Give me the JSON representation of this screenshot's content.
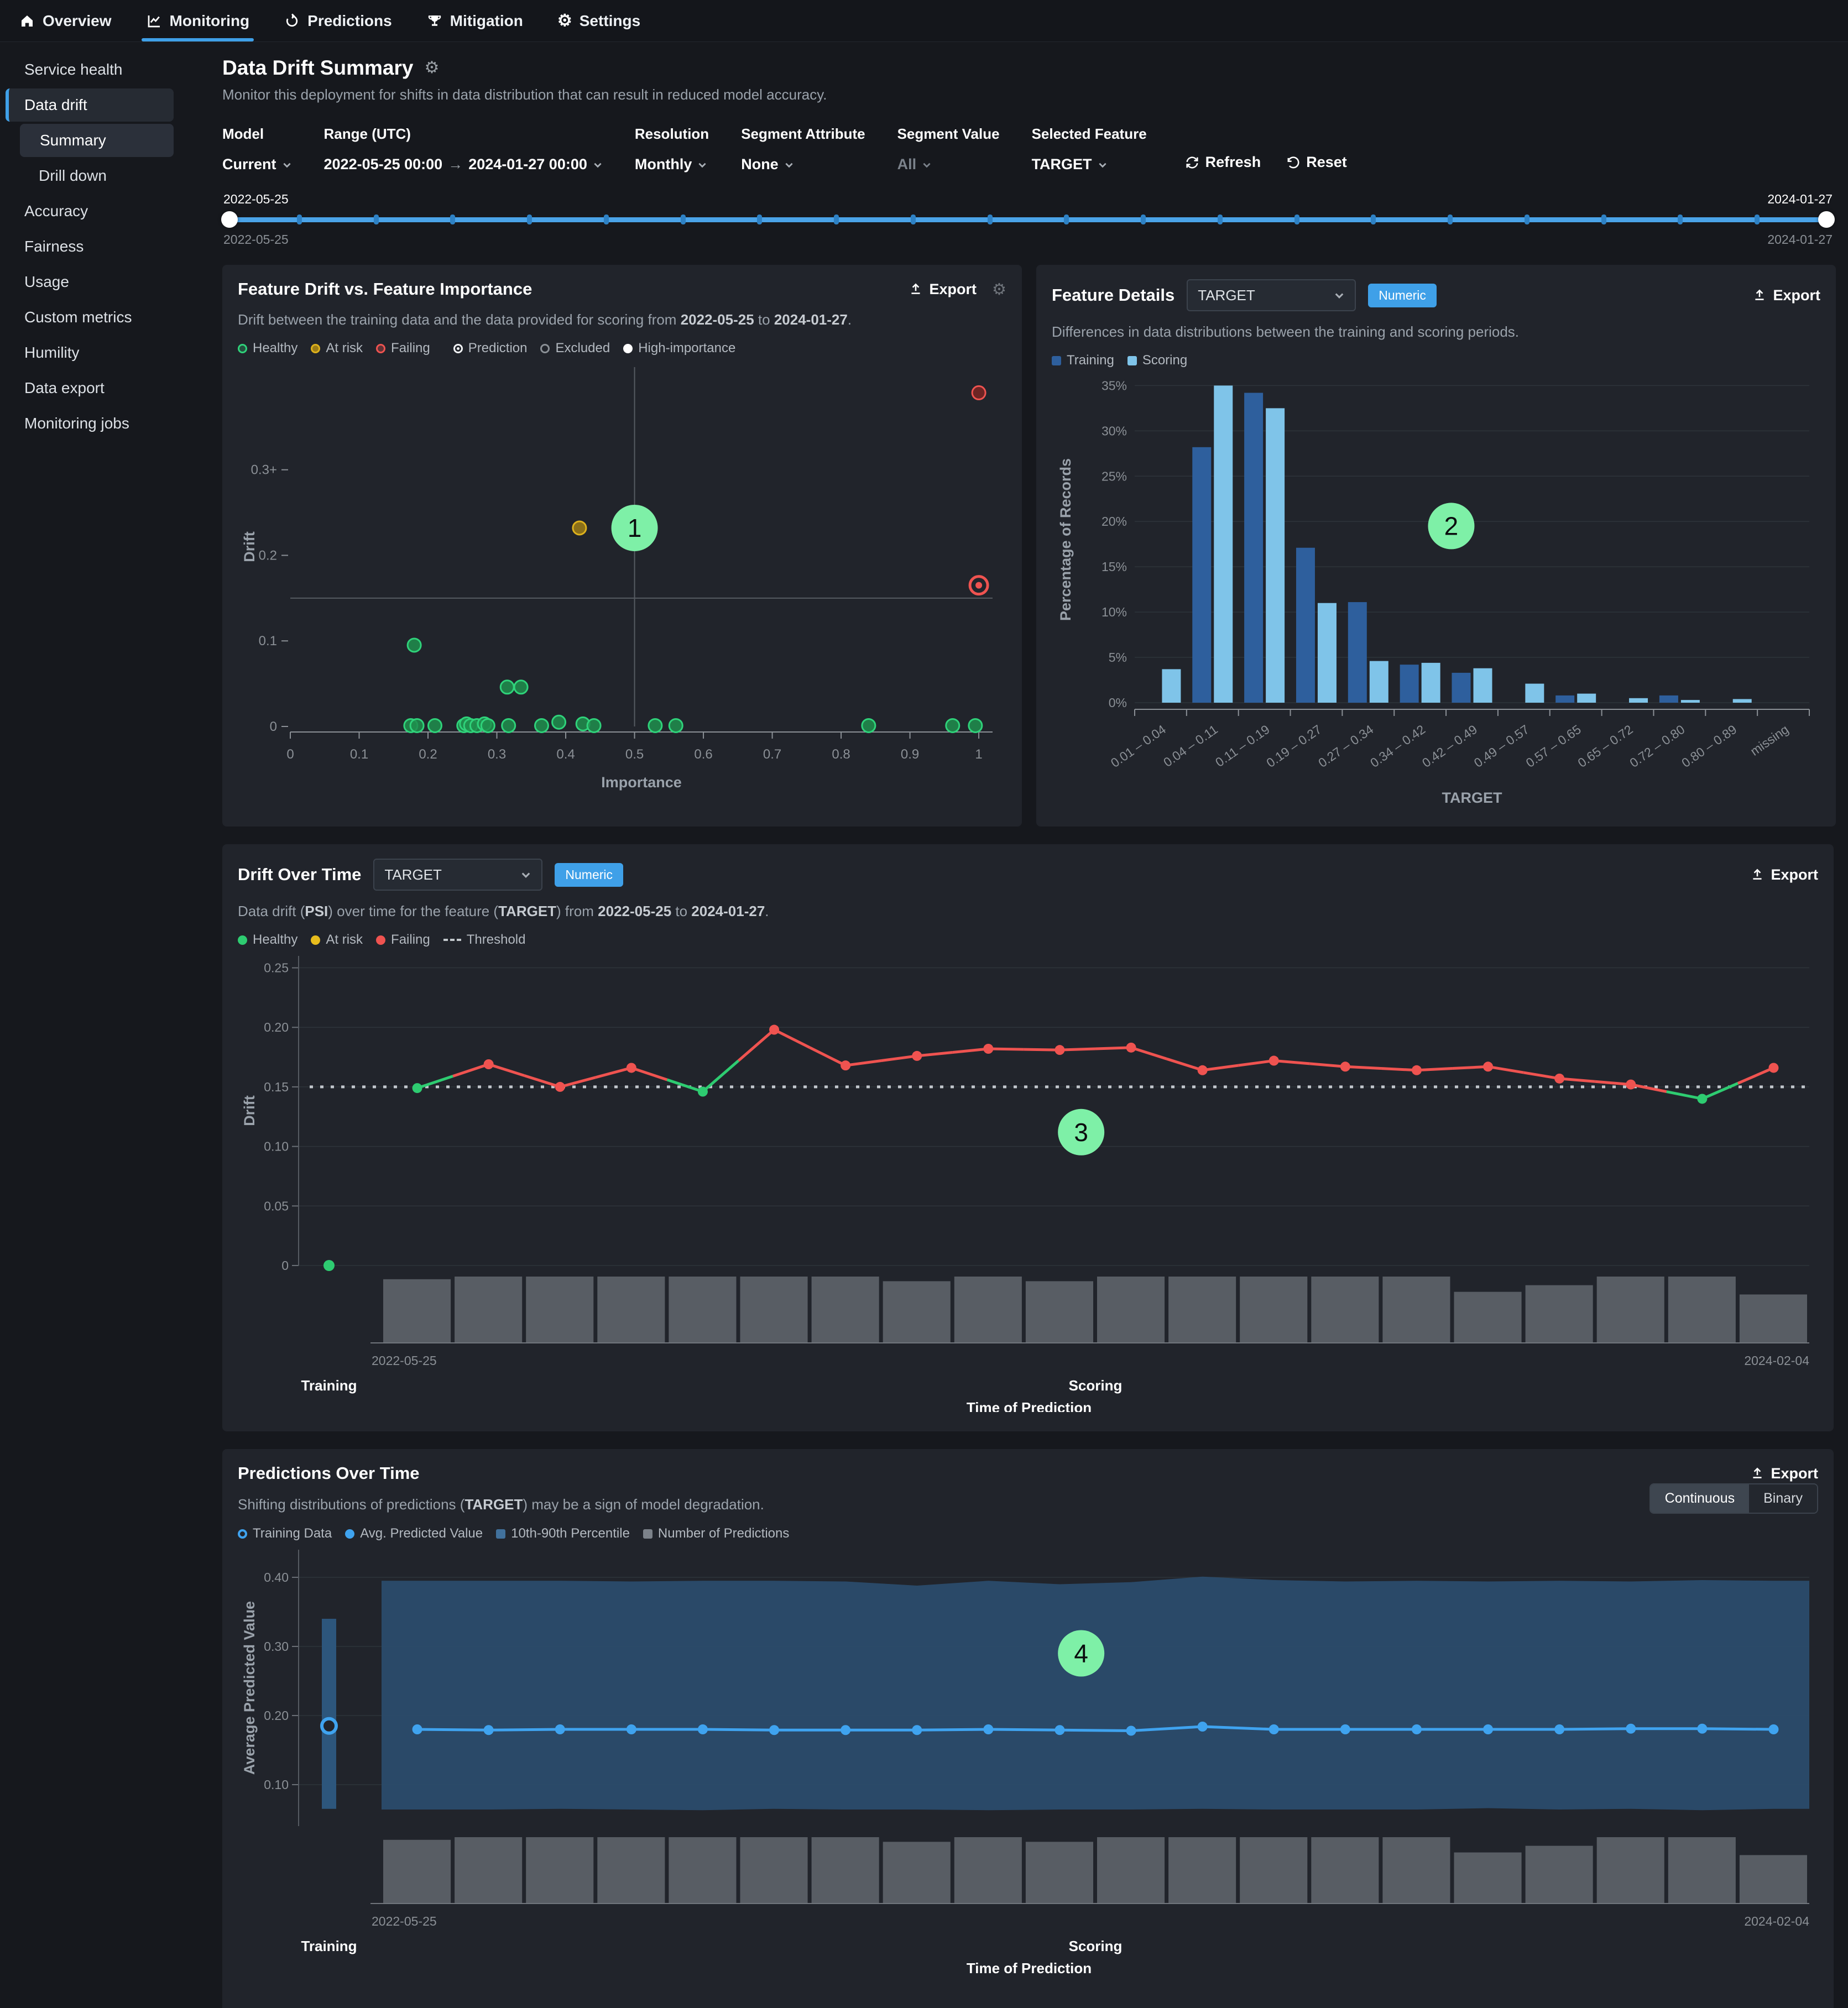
{
  "colors": {
    "accent_blue": "#3fa0e8",
    "healthy_green": "#2ecc71",
    "at_risk_yellow": "#e0b01e",
    "failing_red": "#ef5350",
    "training_blue": "#2e5f9d",
    "scoring_blue": "#7fc4e9",
    "band_blue": "#2b4c6b",
    "training_bar_blue": "#2d567c",
    "avg_line_blue": "#3fa3ef",
    "volume_gray": "#585d64",
    "annotation_green": "#7ef0a7",
    "threshold_gray": "#c2c7cd"
  },
  "nav": {
    "items": [
      {
        "label": "Overview",
        "icon": "home-icon",
        "active": false
      },
      {
        "label": "Monitoring",
        "icon": "monitoring-icon",
        "active": true
      },
      {
        "label": "Predictions",
        "icon": "predictions-icon",
        "active": false
      },
      {
        "label": "Mitigation",
        "icon": "mitigation-icon",
        "active": false
      },
      {
        "label": "Settings",
        "icon": "settings-icon",
        "active": false
      }
    ]
  },
  "sidebar": {
    "items": [
      {
        "label": "Service health"
      },
      {
        "label": "Data drift",
        "parent_active": true
      },
      {
        "label": "Summary",
        "child": true,
        "selected": true
      },
      {
        "label": "Drill down",
        "child": true
      },
      {
        "label": "Accuracy"
      },
      {
        "label": "Fairness"
      },
      {
        "label": "Usage"
      },
      {
        "label": "Custom metrics"
      },
      {
        "label": "Humility"
      },
      {
        "label": "Data export"
      },
      {
        "label": "Monitoring jobs"
      }
    ]
  },
  "header": {
    "title": "Data Drift Summary",
    "subtitle": "Monitor this deployment for shifts in data distribution that can result in reduced model accuracy."
  },
  "filters": {
    "model": {
      "label": "Model",
      "value": "Current"
    },
    "range": {
      "label": "Range (UTC)",
      "start": "2022-05-25  00:00",
      "end": "2024-01-27  00:00"
    },
    "resolution": {
      "label": "Resolution",
      "value": "Monthly"
    },
    "segment_attribute": {
      "label": "Segment Attribute",
      "value": "None"
    },
    "segment_value": {
      "label": "Segment Value",
      "value": "All"
    },
    "selected_feature": {
      "label": "Selected Feature",
      "value": "TARGET"
    },
    "refresh_label": "Refresh",
    "reset_label": "Reset"
  },
  "timeline": {
    "start_label": "2022-05-25",
    "end_label": "2024-01-27",
    "start_sub": "2022-05-25",
    "end_sub": "2024-01-27",
    "tick_count": 20
  },
  "panels": {
    "feature_drift": {
      "title": "Feature Drift vs. Feature Importance",
      "export_label": "Export",
      "description_runs": [
        {
          "t": "Drift between the training data and the data provided for scoring from "
        },
        {
          "t": "2022-05-25",
          "b": true
        },
        {
          "t": " to "
        },
        {
          "t": "2024-01-27",
          "b": true
        },
        {
          "t": "."
        }
      ],
      "legend": [
        {
          "label": "Healthy",
          "marker": "healthy"
        },
        {
          "label": "At risk",
          "marker": "atrisk"
        },
        {
          "label": "Failing",
          "marker": "failing"
        },
        {
          "label": "Prediction",
          "marker": "pred",
          "gap": true
        },
        {
          "label": "Excluded",
          "marker": "excluded"
        },
        {
          "label": "High-importance",
          "marker": "highimp"
        }
      ]
    },
    "feature_details": {
      "title": "Feature Details",
      "feature_select_value": "TARGET",
      "type_badge": "Numeric",
      "export_label": "Export",
      "description_runs": [
        {
          "t": "Differences in data distributions between the training and scoring periods."
        }
      ],
      "legend": [
        {
          "label": "Training",
          "marker": "sq-train"
        },
        {
          "label": "Scoring",
          "marker": "sq-score"
        }
      ]
    },
    "drift_over_time": {
      "title": "Drift Over Time",
      "feature_select_value": "TARGET",
      "type_badge": "Numeric",
      "export_label": "Export",
      "description_runs": [
        {
          "t": "Data drift ("
        },
        {
          "t": "PSI",
          "b": true
        },
        {
          "t": ") over time for the feature ("
        },
        {
          "t": "TARGET",
          "b": true
        },
        {
          "t": ") from "
        },
        {
          "t": "2022-05-25",
          "b": true
        },
        {
          "t": " to "
        },
        {
          "t": "2024-01-27",
          "b": true
        },
        {
          "t": "."
        }
      ],
      "legend": [
        {
          "label": "Healthy",
          "marker": "soliddot-h"
        },
        {
          "label": "At risk",
          "marker": "soliddot-y"
        },
        {
          "label": "Failing",
          "marker": "soliddot-r"
        },
        {
          "label": "Threshold",
          "marker": "dash"
        }
      ]
    },
    "predictions_over_time": {
      "title": "Predictions Over Time",
      "export_label": "Export",
      "description_runs": [
        {
          "t": "Shifting distributions of predictions ("
        },
        {
          "t": "TARGET",
          "b": true
        },
        {
          "t": ") may be a sign of model degradation."
        }
      ],
      "toggle": {
        "options": [
          "Continuous",
          "Binary"
        ],
        "active": "Continuous"
      },
      "legend": [
        {
          "label": "Training Data",
          "marker": "ring-blue"
        },
        {
          "label": "Avg. Predicted Value",
          "marker": "dot-blue"
        },
        {
          "label": "10th-90th Percentile",
          "marker": "sq-band"
        },
        {
          "label": "Number of Predictions",
          "marker": "sq-vol"
        }
      ]
    }
  },
  "chart_data": [
    {
      "id": "feature_drift_scatter",
      "type": "scatter",
      "xlabel": "Importance",
      "ylabel": "Drift",
      "xlim": [
        0,
        1.02
      ],
      "ylim": [
        0,
        0.42
      ],
      "x_ticks": [
        {
          "v": 0,
          "label": "0"
        },
        {
          "v": 0.1,
          "label": "0.1"
        },
        {
          "v": 0.2,
          "label": "0.2"
        },
        {
          "v": 0.3,
          "label": "0.3"
        },
        {
          "v": 0.4,
          "label": "0.4"
        },
        {
          "v": 0.5,
          "label": "0.5"
        },
        {
          "v": 0.6,
          "label": "0.6"
        },
        {
          "v": 0.7,
          "label": "0.7"
        },
        {
          "v": 0.8,
          "label": "0.8"
        },
        {
          "v": 0.9,
          "label": "0.9"
        },
        {
          "v": 1,
          "label": "1"
        }
      ],
      "y_ticks": [
        {
          "v": 0,
          "label": "0"
        },
        {
          "v": 0.1,
          "label": "0.1"
        },
        {
          "v": 0.2,
          "label": "0.2"
        },
        {
          "v": 0.3,
          "label": "0.3+"
        }
      ],
      "importance_threshold": 0.5,
      "drift_threshold": 0.15,
      "points": [
        {
          "x": 1.0,
          "y": 0.39,
          "status": "failing"
        },
        {
          "x": 1.0,
          "y": 0.165,
          "status": "failing",
          "marker": "prediction"
        },
        {
          "x": 0.42,
          "y": 0.232,
          "status": "at_risk"
        },
        {
          "x": 0.18,
          "y": 0.095,
          "status": "healthy"
        },
        {
          "x": 0.315,
          "y": 0.046,
          "status": "healthy"
        },
        {
          "x": 0.335,
          "y": 0.046,
          "status": "healthy"
        },
        {
          "x": 0.175,
          "y": 0.001,
          "status": "healthy"
        },
        {
          "x": 0.184,
          "y": 0.001,
          "status": "healthy"
        },
        {
          "x": 0.21,
          "y": 0.001,
          "status": "healthy"
        },
        {
          "x": 0.252,
          "y": 0.001,
          "status": "healthy"
        },
        {
          "x": 0.256,
          "y": 0.003,
          "status": "healthy"
        },
        {
          "x": 0.262,
          "y": 0.001,
          "status": "healthy"
        },
        {
          "x": 0.271,
          "y": 0.001,
          "status": "healthy"
        },
        {
          "x": 0.282,
          "y": 0.003,
          "status": "healthy"
        },
        {
          "x": 0.287,
          "y": 0.001,
          "status": "healthy"
        },
        {
          "x": 0.317,
          "y": 0.001,
          "status": "healthy"
        },
        {
          "x": 0.365,
          "y": 0.001,
          "status": "healthy"
        },
        {
          "x": 0.39,
          "y": 0.005,
          "status": "healthy"
        },
        {
          "x": 0.425,
          "y": 0.003,
          "status": "healthy"
        },
        {
          "x": 0.441,
          "y": 0.001,
          "status": "healthy"
        },
        {
          "x": 0.53,
          "y": 0.001,
          "status": "healthy"
        },
        {
          "x": 0.56,
          "y": 0.001,
          "status": "healthy"
        },
        {
          "x": 0.84,
          "y": 0.001,
          "status": "healthy"
        },
        {
          "x": 0.962,
          "y": 0.001,
          "status": "healthy"
        },
        {
          "x": 0.995,
          "y": 0.001,
          "status": "healthy"
        }
      ],
      "annotation": {
        "label": "1",
        "x": 0.5,
        "y": 0.232
      }
    },
    {
      "id": "feature_details_histogram",
      "type": "bar",
      "xlabel": "TARGET",
      "ylabel": "Percentage of Records",
      "ylim": [
        0,
        36
      ],
      "y_ticks_pct": [
        0,
        5,
        10,
        15,
        20,
        25,
        30,
        35
      ],
      "categories": [
        "0.01 – 0.04",
        "0.04 – 0.11",
        "0.11 – 0.19",
        "0.19 – 0.27",
        "0.27 – 0.34",
        "0.34 – 0.42",
        "0.42 – 0.49",
        "0.49 – 0.57",
        "0.57 – 0.65",
        "0.65 – 0.72",
        "0.72 – 0.80",
        "0.80 – 0.89",
        "missing"
      ],
      "series": [
        {
          "name": "Training",
          "values": [
            0,
            28.2,
            34.2,
            17.1,
            11.1,
            4.2,
            3.3,
            0,
            0.8,
            0,
            0.8,
            0,
            0
          ]
        },
        {
          "name": "Scoring",
          "values": [
            3.7,
            35.0,
            32.5,
            11.0,
            4.6,
            4.4,
            3.8,
            2.1,
            1.0,
            0.5,
            0.3,
            0.4,
            0
          ]
        }
      ],
      "annotation": {
        "label": "2",
        "x_index": 5.6,
        "y": 19.5
      }
    },
    {
      "id": "drift_over_time",
      "type": "line",
      "ylabel": "Drift",
      "ylim": [
        0,
        0.26
      ],
      "y_ticks": [
        {
          "v": 0,
          "label": "0"
        },
        {
          "v": 0.05,
          "label": "0.05"
        },
        {
          "v": 0.1,
          "label": "0.10"
        },
        {
          "v": 0.15,
          "label": "0.15"
        },
        {
          "v": 0.2,
          "label": "0.20"
        },
        {
          "v": 0.25,
          "label": "0.25"
        }
      ],
      "threshold": 0.15,
      "training_point": {
        "value": 0,
        "status": "healthy"
      },
      "values": [
        0.149,
        0.169,
        0.15,
        0.166,
        0.146,
        0.198,
        0.168,
        0.176,
        0.182,
        0.181,
        0.183,
        0.164,
        0.172,
        0.167,
        0.164,
        0.167,
        0.157,
        0.152,
        0.14,
        0.166
      ],
      "statuses": [
        "healthy",
        "failing",
        "failing",
        "failing",
        "healthy",
        "failing",
        "failing",
        "failing",
        "failing",
        "failing",
        "failing",
        "failing",
        "failing",
        "failing",
        "failing",
        "failing",
        "failing",
        "failing",
        "healthy",
        "failing"
      ],
      "volume": [
        0.96,
        1,
        1,
        1,
        1,
        1,
        1,
        0.93,
        1,
        0.93,
        1,
        1,
        1,
        1,
        1,
        0.77,
        0.87,
        1,
        1,
        0.73
      ],
      "x_start_label": "2022-05-25",
      "x_end_label": "2024-02-04",
      "training_label": "Training",
      "scoring_label": "Scoring",
      "x_axis_title": "Time of Prediction",
      "annotation": {
        "label": "3",
        "x_index": 9.3,
        "y": 0.112
      }
    },
    {
      "id": "predictions_over_time",
      "type": "line-band",
      "ylabel": "Average Predicted Value",
      "ylim": [
        0.04,
        0.44
      ],
      "y_ticks": [
        {
          "v": 0.1,
          "label": "0.10"
        },
        {
          "v": 0.2,
          "label": "0.20"
        },
        {
          "v": 0.3,
          "label": "0.30"
        },
        {
          "v": 0.4,
          "label": "0.40"
        }
      ],
      "training": {
        "band_low": 0.065,
        "band_high": 0.34,
        "marker": 0.185
      },
      "avg_values": [
        0.18,
        0.179,
        0.18,
        0.18,
        0.18,
        0.179,
        0.179,
        0.179,
        0.18,
        0.179,
        0.178,
        0.184,
        0.18,
        0.18,
        0.18,
        0.18,
        0.18,
        0.181,
        0.181,
        0.18
      ],
      "band_top": [
        0.395,
        0.395,
        0.395,
        0.394,
        0.395,
        0.395,
        0.394,
        0.388,
        0.395,
        0.39,
        0.393,
        0.401,
        0.396,
        0.394,
        0.395,
        0.394,
        0.395,
        0.394,
        0.396,
        0.395
      ],
      "band_bottom": [
        0.064,
        0.064,
        0.065,
        0.064,
        0.063,
        0.065,
        0.064,
        0.064,
        0.063,
        0.064,
        0.064,
        0.065,
        0.064,
        0.064,
        0.064,
        0.066,
        0.064,
        0.065,
        0.063,
        0.065
      ],
      "volume": [
        0.96,
        1,
        1,
        1,
        1,
        1,
        1,
        0.93,
        1,
        0.93,
        1,
        1,
        1,
        1,
        1,
        0.77,
        0.87,
        1,
        1,
        0.73
      ],
      "x_start_label": "2022-05-25",
      "x_end_label": "2024-02-04",
      "training_label": "Training",
      "scoring_label": "Scoring",
      "x_axis_title": "Time of Prediction",
      "annotation": {
        "label": "4",
        "x_index": 9.3,
        "y": 0.29
      }
    }
  ]
}
